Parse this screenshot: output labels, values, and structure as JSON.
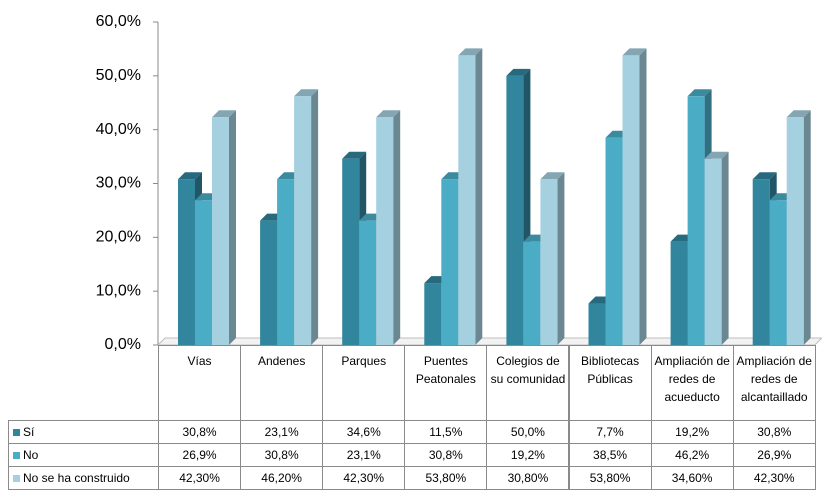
{
  "chart_data": {
    "type": "bar3d",
    "categories": [
      "Vías",
      "Andenes",
      "Parques",
      "Puentes Peatonales",
      "Colegios de su comunidad",
      "Bibliotecas Públicas",
      "Ampliación de redes de acueducto",
      "Ampliación de redes de alcantaillado"
    ],
    "series": [
      {
        "name": "Sí",
        "color": "#31859c",
        "values": [
          30.8,
          23.1,
          34.6,
          11.5,
          50.0,
          7.7,
          19.2,
          30.8
        ],
        "value_labels": [
          "30,8%",
          "23,1%",
          "34,6%",
          "11,5%",
          "50,0%",
          "7,7%",
          "19,2%",
          "30,8%"
        ]
      },
      {
        "name": "No",
        "color": "#4bacc6",
        "values": [
          26.9,
          30.8,
          23.1,
          30.8,
          19.2,
          38.5,
          46.2,
          26.9
        ],
        "value_labels": [
          "26,9%",
          "30,8%",
          "23,1%",
          "30,8%",
          "19,2%",
          "38,5%",
          "46,2%",
          "26,9%"
        ]
      },
      {
        "name": "No se ha construido",
        "color": "#a5d0df",
        "values": [
          42.3,
          46.2,
          42.3,
          53.8,
          30.8,
          53.8,
          34.6,
          42.3
        ],
        "value_labels": [
          "42,30%",
          "46,20%",
          "42,30%",
          "53,80%",
          "30,80%",
          "53,80%",
          "34,60%",
          "42,30%"
        ]
      }
    ],
    "ylim": [
      0,
      60
    ],
    "yticks": [
      {
        "value": 0,
        "label": "0,0%"
      },
      {
        "value": 10,
        "label": "10,0%"
      },
      {
        "value": 20,
        "label": "20,0%"
      },
      {
        "value": 30,
        "label": "30,0%"
      },
      {
        "value": 40,
        "label": "40,0%"
      },
      {
        "value": 50,
        "label": "50,0%"
      },
      {
        "value": 60,
        "label": "60,0%"
      }
    ]
  }
}
